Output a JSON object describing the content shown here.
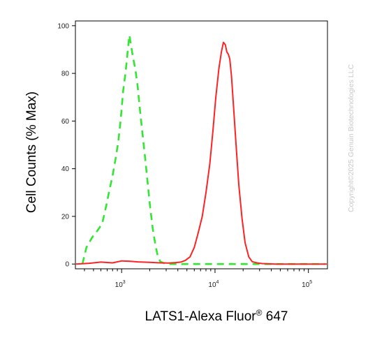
{
  "chart_data": {
    "type": "line",
    "title": "",
    "xlabel": "LATS1-Alexa Fluor",
    "xlabel_sup": "®",
    "xlabel_suffix": " 647",
    "ylabel": "Cell Counts (% Max)",
    "x_scale": "log",
    "xlim": [
      320,
      160000
    ],
    "ylim": [
      -2,
      102
    ],
    "y_ticks": [
      0,
      20,
      40,
      60,
      80,
      100
    ],
    "x_ticks": [
      {
        "value": 1000,
        "base": "10",
        "exp": "3"
      },
      {
        "value": 10000,
        "base": "10",
        "exp": "4"
      },
      {
        "value": 100000,
        "base": "10",
        "exp": "5"
      }
    ],
    "grid": false,
    "series": [
      {
        "color": "#32e632",
        "style": "dashed",
        "x": [
          380,
          420,
          480,
          550,
          620,
          680,
          740,
          800,
          860,
          920,
          980,
          1040,
          1100,
          1160,
          1210,
          1260,
          1320,
          1400,
          1480,
          1560,
          1660,
          1780,
          1900,
          2020,
          2150,
          2300,
          2450,
          2600,
          2800,
          3000,
          3300,
          3700,
          4200,
          5000,
          7000,
          10000,
          20000,
          50000,
          150000
        ],
        "y": [
          0,
          7,
          11,
          14,
          17,
          24,
          31,
          37,
          44,
          51,
          61,
          73,
          80,
          89,
          96,
          92,
          87,
          82,
          75,
          66,
          56,
          45,
          34,
          24,
          15,
          8,
          3,
          1,
          0.5,
          0,
          0,
          0,
          0,
          0,
          0,
          0,
          0,
          0,
          0
        ]
      },
      {
        "color": "#ff2222",
        "style": "solid",
        "x": [
          320,
          450,
          600,
          800,
          1000,
          1200,
          1500,
          2000,
          2600,
          3200,
          3800,
          4300,
          4800,
          5400,
          6000,
          6600,
          7300,
          8000,
          8800,
          9500,
          10200,
          11000,
          11700,
          12300,
          12900,
          13400,
          13900,
          14400,
          15000,
          15800,
          16800,
          18000,
          19500,
          21000,
          23000,
          25000,
          28000,
          32000,
          45000,
          70000,
          160000
        ],
        "y": [
          0,
          0.3,
          0.8,
          0.5,
          1.3,
          1.2,
          0.9,
          0.7,
          0.5,
          0.4,
          0.6,
          0.8,
          1.5,
          3,
          7,
          13,
          20,
          30,
          42,
          56,
          70,
          82,
          89,
          93,
          92,
          89,
          88,
          86,
          79,
          66,
          50,
          33,
          19,
          9,
          3,
          1,
          0.5,
          0.2,
          0,
          0,
          0
        ]
      }
    ]
  },
  "watermark": "Copyright©2025 Genuin Biotechnologies LLC"
}
